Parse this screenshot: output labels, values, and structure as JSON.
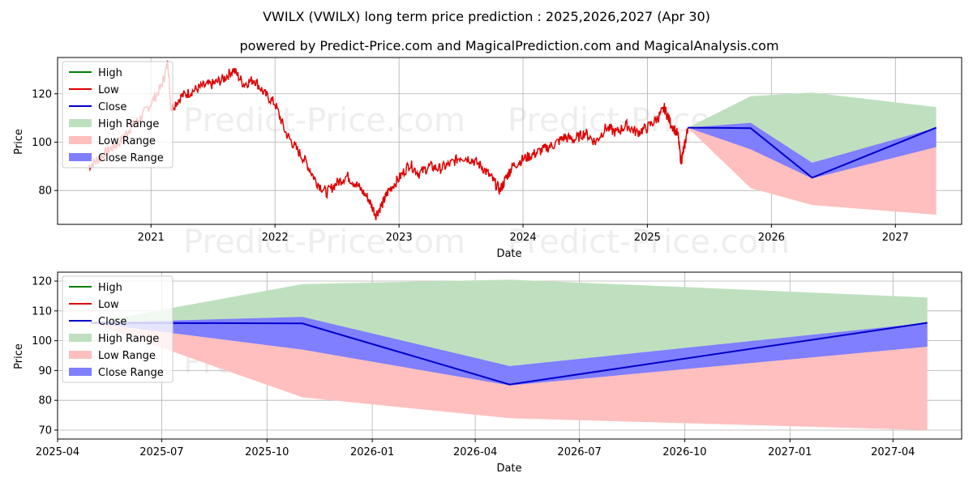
{
  "header": {
    "title": "VWILX (VWILX) long term price prediction : 2025,2026,2027 (Apr 30)",
    "subtitle": "powered by Predict-Price.com and MagicalPrediction.com and MagicalAnalysis.com"
  },
  "watermark": "Predict-Price.com",
  "colors": {
    "high": "#008000",
    "low": "#dd0000",
    "close": "#0000cc",
    "high_range": "#bfe0bf",
    "low_range": "#ffbfbf",
    "close_range": "#7f7fff"
  },
  "legend": [
    "High",
    "Low",
    "Close",
    "High Range",
    "Low Range",
    "Close Range"
  ],
  "chart_data": [
    {
      "type": "line",
      "xlabel": "Date",
      "ylabel": "Price",
      "xlim": [
        "2020-04-01",
        "2027-07-15"
      ],
      "ylim": [
        66,
        135
      ],
      "xticks": [
        "2021",
        "2022",
        "2023",
        "2024",
        "2025",
        "2026",
        "2027"
      ],
      "yticks": [
        80,
        100,
        120
      ],
      "grid": true,
      "legend_position": "top-left",
      "history_low_series": {
        "name": "Low",
        "x": [
          "2020-07-01",
          "2020-08-01",
          "2020-09-01",
          "2020-10-01",
          "2020-11-01",
          "2020-12-01",
          "2021-01-01",
          "2021-02-01",
          "2021-02-20",
          "2021-03-01",
          "2021-04-01",
          "2021-05-01",
          "2021-06-01",
          "2021-07-01",
          "2021-08-01",
          "2021-09-01",
          "2021-10-01",
          "2021-11-01",
          "2021-12-01",
          "2022-01-01",
          "2022-02-01",
          "2022-03-01",
          "2022-04-01",
          "2022-05-01",
          "2022-06-01",
          "2022-07-01",
          "2022-08-01",
          "2022-09-01",
          "2022-10-01",
          "2022-10-25",
          "2022-11-15",
          "2022-12-01",
          "2023-01-01",
          "2023-02-01",
          "2023-03-01",
          "2023-04-01",
          "2023-05-01",
          "2023-06-01",
          "2023-07-01",
          "2023-08-01",
          "2023-09-01",
          "2023-10-01",
          "2023-10-25",
          "2023-11-15",
          "2023-12-01",
          "2024-01-01",
          "2024-02-01",
          "2024-03-01",
          "2024-04-01",
          "2024-05-01",
          "2024-06-01",
          "2024-07-01",
          "2024-08-01",
          "2024-09-01",
          "2024-10-01",
          "2024-11-01",
          "2024-12-01",
          "2025-01-01",
          "2025-02-01",
          "2025-02-20",
          "2025-03-10",
          "2025-04-01",
          "2025-04-10",
          "2025-04-20",
          "2025-04-30"
        ],
        "y": [
          90,
          93,
          97,
          100,
          106,
          110,
          116,
          123,
          133,
          114,
          119,
          121,
          123,
          124,
          126,
          130,
          124,
          126,
          120,
          116,
          104,
          98,
          92,
          84,
          79,
          83,
          86,
          82,
          77,
          70,
          75,
          80,
          85,
          91,
          87,
          90,
          89,
          91,
          94,
          93,
          90,
          85,
          80,
          86,
          90,
          93,
          95,
          97,
          99,
          102,
          101,
          104,
          100,
          106,
          104,
          107,
          104,
          106,
          110,
          114,
          108,
          103,
          92,
          98,
          106
        ]
      },
      "forecast": {
        "x": [
          "2025-04-30",
          "2025-11-01",
          "2026-05-01",
          "2027-05-01"
        ],
        "high_upper": [
          106,
          119,
          120.5,
          114.5
        ],
        "low_lower": [
          106,
          81,
          74,
          70
        ],
        "close_upper": [
          106,
          108,
          91.5,
          106
        ],
        "close_lower": [
          106,
          97,
          85,
          98
        ],
        "close": [
          106,
          105.8,
          85.3,
          106
        ]
      }
    },
    {
      "type": "line",
      "xlabel": "Date",
      "ylabel": "Price",
      "xlim": [
        "2025-04-01",
        "2027-05-31"
      ],
      "ylim": [
        67,
        123
      ],
      "xticks": [
        "2025-04",
        "2025-07",
        "2025-10",
        "2026-01",
        "2026-04",
        "2026-07",
        "2026-10",
        "2027-01",
        "2027-04"
      ],
      "yticks": [
        70,
        80,
        90,
        100,
        110,
        120
      ],
      "grid": true,
      "legend_position": "top-left",
      "forecast": {
        "x": [
          "2025-04-30",
          "2025-11-01",
          "2026-05-01",
          "2027-05-01"
        ],
        "high_upper": [
          106,
          119,
          120.5,
          114.5
        ],
        "high_lower": [
          106,
          105.8,
          91.5,
          106
        ],
        "low_upper": [
          106,
          105.8,
          85.3,
          106
        ],
        "low_lower": [
          106,
          81,
          74,
          70
        ],
        "close_upper": [
          106,
          108,
          91.5,
          106
        ],
        "close_lower": [
          106,
          97,
          85,
          98
        ],
        "close": [
          106,
          105.8,
          85.3,
          106
        ]
      }
    }
  ]
}
